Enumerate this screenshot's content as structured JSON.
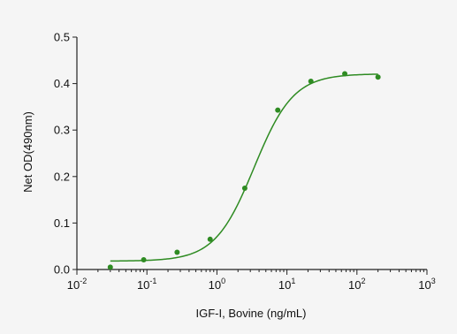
{
  "chart_data": {
    "type": "scatter",
    "title": "",
    "xlabel": "IGF-I, Bovine (ng/mL)",
    "ylabel": "Net OD(490nm)",
    "x_scale": "log",
    "xlim": [
      0.01,
      1000
    ],
    "ylim": [
      0,
      0.5
    ],
    "x_ticks": [
      {
        "base": "10",
        "exp": "-2"
      },
      {
        "base": "10",
        "exp": "-1"
      },
      {
        "base": "10",
        "exp": "0"
      },
      {
        "base": "10",
        "exp": "1"
      },
      {
        "base": "10",
        "exp": "2"
      },
      {
        "base": "10",
        "exp": "3"
      }
    ],
    "y_ticks": [
      "0.0",
      "0.1",
      "0.2",
      "0.3",
      "0.4",
      "0.5"
    ],
    "grid": false,
    "series": [
      {
        "points": [
          {
            "x": 0.03,
            "y": 0.005
          },
          {
            "x": 0.09,
            "y": 0.021
          },
          {
            "x": 0.27,
            "y": 0.037
          },
          {
            "x": 0.8,
            "y": 0.065
          },
          {
            "x": 2.5,
            "y": 0.175
          },
          {
            "x": 7.4,
            "y": 0.343
          },
          {
            "x": 22,
            "y": 0.405
          },
          {
            "x": 67,
            "y": 0.421
          },
          {
            "x": 200,
            "y": 0.414
          }
        ],
        "fit": {
          "bottom": 0.018,
          "top": 0.421,
          "ec50": 3.4,
          "hill": 1.55,
          "x_range": [
            0.03,
            200
          ]
        }
      }
    ],
    "colors": {
      "series": "#2e8b22",
      "axis": "#222222"
    }
  }
}
